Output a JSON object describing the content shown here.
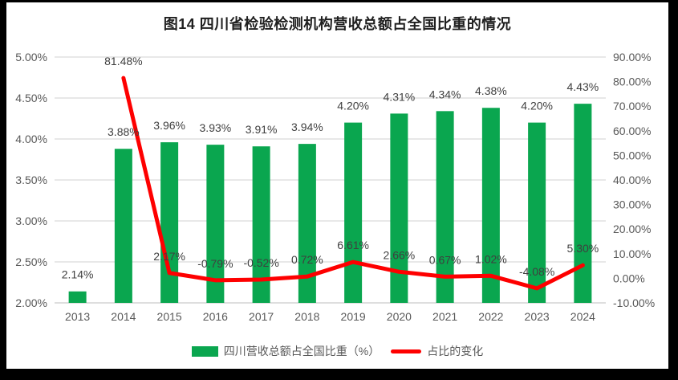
{
  "colors": {
    "bar_green": "#0AA64F",
    "line_red": "#FE0000",
    "grid": "#D9D9D9",
    "axis_line": "#C9C9C9",
    "axis_text": "#595959",
    "label_text": "#3F3F3F",
    "frame": "#000000",
    "background": "#FFFFFF"
  },
  "chart_data": {
    "type": "combo",
    "title": "图14  四川省检验检测机构营收总额占全国比重的情况",
    "categories": [
      "2013",
      "2014",
      "2015",
      "2016",
      "2017",
      "2018",
      "2019",
      "2020",
      "2021",
      "2022",
      "2023",
      "2024"
    ],
    "series": [
      {
        "name": "四川营收总额占全国比重（%）",
        "type": "bar",
        "axis": "left",
        "color": "#0AA64F",
        "values": [
          2.14,
          3.88,
          3.96,
          3.93,
          3.91,
          3.94,
          4.2,
          4.31,
          4.34,
          4.38,
          4.2,
          4.43
        ],
        "labels": [
          "2.14%",
          "3.88%",
          "3.96%",
          "3.93%",
          "3.91%",
          "3.94%",
          "4.20%",
          "4.31%",
          "4.34%",
          "4.38%",
          "4.20%",
          "4.43%"
        ]
      },
      {
        "name": "占比的变化",
        "type": "line",
        "axis": "right",
        "color": "#FE0000",
        "values": [
          null,
          81.48,
          2.17,
          -0.79,
          -0.52,
          0.72,
          6.61,
          2.66,
          0.67,
          1.02,
          -4.08,
          5.3
        ],
        "labels": [
          null,
          "81.48%",
          "2.17%",
          "-0.79%",
          "-0.52%",
          "0.72%",
          "6.61%",
          "2.66%",
          "0.67%",
          "1.02%",
          "-4.08%",
          "5.30%"
        ]
      }
    ],
    "left_axis": {
      "min": 2.0,
      "max": 5.0,
      "step": 0.5,
      "ticks": [
        "5.00%",
        "4.50%",
        "4.00%",
        "3.50%",
        "3.00%",
        "2.50%",
        "2.00%"
      ]
    },
    "right_axis": {
      "min": -10,
      "max": 90,
      "step": 10,
      "ticks": [
        "90.00%",
        "80.00%",
        "70.00%",
        "60.00%",
        "50.00%",
        "40.00%",
        "30.00%",
        "20.00%",
        "10.00%",
        "0.00%",
        "-10.00%"
      ]
    },
    "grid": "horizontal",
    "legend_position": "bottom"
  },
  "legend": {
    "bar_label": "四川营收总额占全国比重（%）",
    "line_label": "占比的变化"
  }
}
